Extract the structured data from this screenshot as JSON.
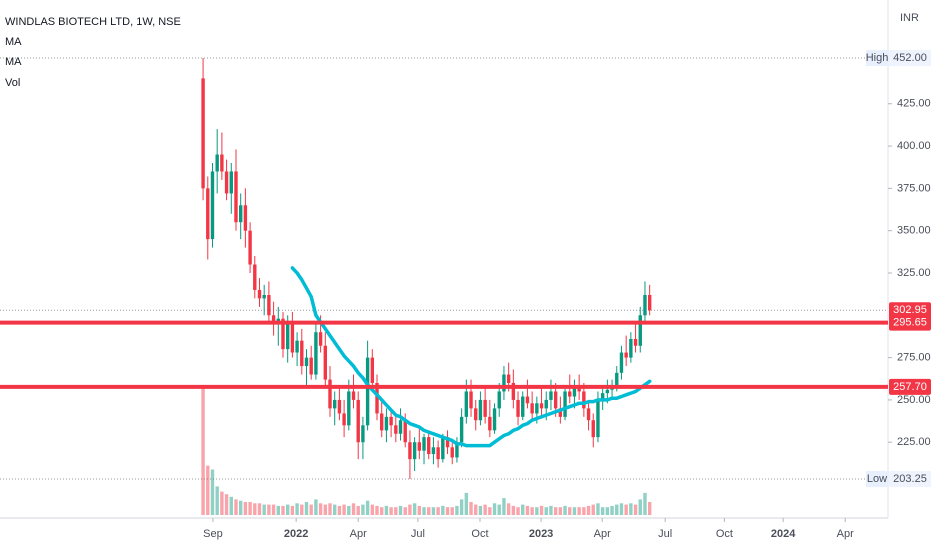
{
  "chart_data": {
    "type": "candlestick",
    "title": "WINDLAS BIOTECH LTD, 1W, NSE",
    "legend": [
      "MA",
      "MA",
      "Vol"
    ],
    "currency": "INR",
    "up_color": "#089981",
    "down_color": "#f23645",
    "candles": {
      "open": [
        440,
        375,
        345,
        385,
        395,
        385,
        372,
        385,
        355,
        365,
        350,
        330,
        315,
        310,
        312,
        300,
        295,
        298,
        280,
        295,
        278,
        285,
        270,
        275,
        265,
        290,
        282,
        262,
        245,
        250,
        242,
        235,
        255,
        250,
        225,
        235,
        275,
        260,
        242,
        232,
        240,
        235,
        230,
        238,
        225,
        215,
        225,
        220,
        228,
        218,
        222,
        215,
        228,
        222,
        216,
        225,
        240,
        255,
        245,
        238,
        250,
        240,
        232,
        245,
        255,
        265,
        260,
        250,
        240,
        252,
        248,
        242,
        248,
        245,
        250,
        255,
        245,
        240,
        255,
        252,
        258,
        255,
        245,
        238,
        228,
        250,
        254,
        256,
        258,
        266,
        278,
        275,
        286,
        282,
        300,
        312
      ],
      "high": [
        452,
        382,
        390,
        410,
        408,
        392,
        390,
        398,
        372,
        375,
        355,
        335,
        322,
        318,
        320,
        308,
        305,
        302,
        300,
        302,
        290,
        292,
        280,
        282,
        295,
        300,
        290,
        270,
        255,
        258,
        250,
        262,
        265,
        255,
        240,
        285,
        280,
        265,
        250,
        245,
        245,
        242,
        245,
        242,
        232,
        228,
        235,
        230,
        232,
        228,
        226,
        230,
        232,
        226,
        228,
        245,
        262,
        262,
        250,
        255,
        258,
        250,
        248,
        260,
        270,
        272,
        268,
        255,
        255,
        262,
        255,
        252,
        258,
        255,
        262,
        260,
        252,
        258,
        265,
        262,
        265,
        260,
        250,
        242,
        255,
        258,
        262,
        262,
        270,
        282,
        288,
        290,
        295,
        305,
        320,
        318
      ],
      "low": [
        368,
        333,
        340,
        372,
        380,
        368,
        360,
        350,
        345,
        340,
        325,
        310,
        305,
        300,
        295,
        288,
        282,
        275,
        272,
        275,
        270,
        265,
        258,
        262,
        262,
        278,
        258,
        240,
        235,
        238,
        228,
        232,
        245,
        215,
        215,
        232,
        255,
        238,
        228,
        225,
        228,
        225,
        226,
        222,
        203.25,
        208,
        215,
        212,
        215,
        212,
        210,
        213,
        218,
        212,
        213,
        222,
        236,
        240,
        232,
        235,
        236,
        228,
        230,
        240,
        250,
        255,
        245,
        235,
        238,
        245,
        238,
        236,
        240,
        238,
        244,
        240,
        236,
        238,
        248,
        245,
        250,
        240,
        232,
        222,
        225,
        244,
        248,
        250,
        255,
        262,
        270,
        272,
        278,
        278,
        296,
        300
      ],
      "close": [
        375,
        345,
        385,
        395,
        385,
        372,
        385,
        355,
        365,
        350,
        330,
        315,
        310,
        312,
        300,
        295,
        298,
        280,
        295,
        278,
        285,
        270,
        275,
        265,
        290,
        282,
        262,
        245,
        250,
        242,
        235,
        255,
        250,
        225,
        235,
        275,
        260,
        242,
        232,
        240,
        235,
        230,
        238,
        225,
        215,
        225,
        220,
        228,
        218,
        222,
        215,
        228,
        222,
        216,
        225,
        240,
        255,
        245,
        238,
        250,
        240,
        232,
        245,
        255,
        265,
        260,
        250,
        240,
        252,
        248,
        242,
        248,
        245,
        250,
        255,
        245,
        240,
        255,
        252,
        258,
        255,
        245,
        238,
        228,
        250,
        254,
        256,
        258,
        266,
        278,
        275,
        286,
        282,
        300,
        312,
        302.95
      ]
    },
    "volume": [
      100,
      38,
      35,
      22,
      18,
      16,
      14,
      12,
      11,
      10,
      10,
      9,
      9,
      8,
      8,
      8,
      7,
      7,
      8,
      7,
      9,
      8,
      10,
      8,
      12,
      9,
      8,
      9,
      8,
      7,
      8,
      7,
      9,
      7,
      8,
      11,
      8,
      7,
      6,
      7,
      6,
      6,
      7,
      6,
      8,
      9,
      7,
      6,
      6,
      6,
      6,
      7,
      6,
      6,
      7,
      12,
      17,
      10,
      8,
      7,
      8,
      6,
      9,
      8,
      13,
      9,
      7,
      6,
      8,
      7,
      6,
      6,
      7,
      6,
      7,
      6,
      6,
      7,
      6,
      6,
      6,
      6,
      7,
      8,
      9,
      6,
      6,
      7,
      8,
      9,
      8,
      9,
      8,
      12,
      17,
      10
    ],
    "vlim": [
      0,
      100
    ],
    "series": [
      {
        "name": "MA",
        "color": "#00bcd4",
        "values": [
          null,
          null,
          null,
          null,
          null,
          null,
          null,
          null,
          null,
          null,
          null,
          null,
          null,
          null,
          null,
          null,
          null,
          null,
          null,
          328,
          325,
          321,
          316,
          311,
          300,
          296,
          292,
          288,
          284,
          280,
          276,
          273,
          270,
          266,
          263,
          259,
          256,
          253,
          250,
          247,
          244,
          241,
          240,
          238,
          236,
          235,
          234,
          232,
          231,
          230,
          229,
          228,
          227,
          226,
          224,
          224,
          223,
          223,
          223,
          223,
          223,
          223,
          225,
          227,
          229,
          230,
          232,
          233,
          235,
          236,
          238,
          239,
          240,
          241,
          242,
          243,
          244,
          245,
          246,
          247,
          248,
          248,
          249,
          249,
          250,
          250,
          250,
          251,
          251,
          252,
          253,
          254,
          255,
          257,
          259,
          261
        ]
      }
    ],
    "xlim": [
      -43.2,
      145.7
    ],
    "xticks": [
      {
        "value": 2.1,
        "label": "Sep"
      },
      {
        "value": 19.8,
        "label": "2022"
      },
      {
        "value": 33,
        "label": "Apr"
      },
      {
        "value": 45.7,
        "label": "Jul"
      },
      {
        "value": 58.9,
        "label": "Oct"
      },
      {
        "value": 71.9,
        "label": "2023"
      },
      {
        "value": 84.9,
        "label": "Apr"
      },
      {
        "value": 98.3,
        "label": "Jul"
      },
      {
        "value": 110.9,
        "label": "Oct"
      },
      {
        "value": 123.4,
        "label": "2024"
      },
      {
        "value": 136.6,
        "label": "Apr"
      }
    ],
    "ylim": [
      182,
      486.3
    ],
    "yticks": [
      {
        "value": 225,
        "label": "225.00"
      },
      {
        "value": 250,
        "label": "250.00"
      },
      {
        "value": 275,
        "label": "275.00"
      },
      {
        "value": 325,
        "label": "325.00"
      },
      {
        "value": 350,
        "label": "350.00"
      },
      {
        "value": 375,
        "label": "375.00"
      },
      {
        "value": 400,
        "label": "400.00"
      },
      {
        "value": 425,
        "label": "425.00"
      }
    ],
    "high": {
      "name": "High",
      "value": 452,
      "label": "452.00"
    },
    "low": {
      "name": "Low",
      "value": 203.25,
      "label": "203.25"
    },
    "last_price": 302.95,
    "levels": {
      "values": [
        295.65,
        257.7
      ],
      "value_labels": [
        "295.65",
        "257.70"
      ],
      "color": "#f23645"
    }
  }
}
